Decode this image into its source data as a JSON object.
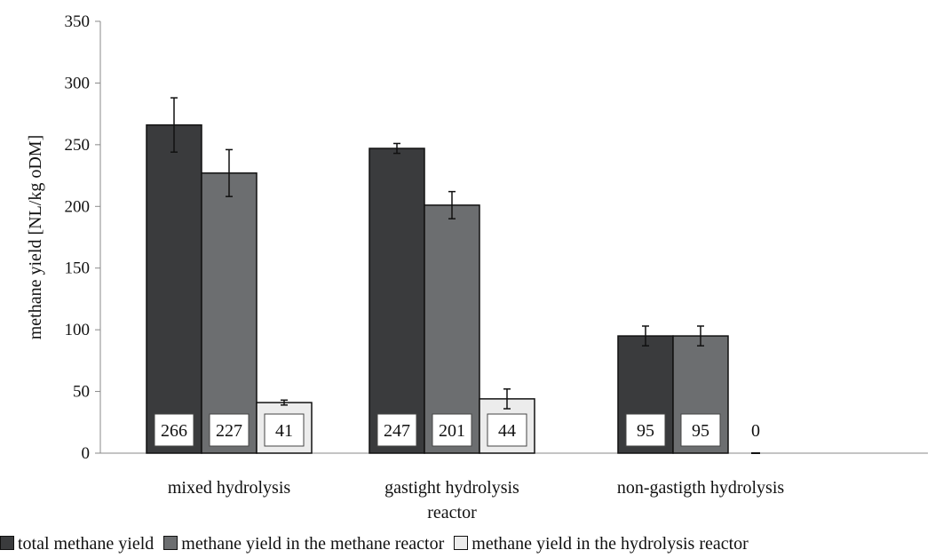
{
  "chart_data": {
    "type": "bar",
    "ylabel": "methane yield [NL/kg oDM]",
    "xlabel": "",
    "ylim": [
      0,
      350
    ],
    "yticks": [
      0,
      50,
      100,
      150,
      200,
      250,
      300,
      350
    ],
    "grid": false,
    "legend_position": "bottom",
    "categories": [
      [
        "mixed hydrolysis"
      ],
      [
        "gastight hydrolysis",
        "reactor"
      ],
      [
        "non-gastigth hydrolysis"
      ]
    ],
    "series": [
      {
        "name": "total methane yield",
        "color": "#3a3b3d",
        "values": [
          266,
          247,
          95
        ],
        "errors": [
          22,
          4,
          8
        ],
        "labels": [
          "266",
          "247",
          "95"
        ]
      },
      {
        "name": "methane yield in the methane reactor",
        "color": "#6c6e70",
        "values": [
          227,
          201,
          95
        ],
        "errors": [
          19,
          11,
          8
        ],
        "labels": [
          "227",
          "201",
          "95"
        ]
      },
      {
        "name": "methane yield in the hydrolysis reactor",
        "color": "#ececec",
        "values": [
          41,
          44,
          0
        ],
        "errors": [
          2,
          8,
          0
        ],
        "labels": [
          "41",
          "44",
          "0"
        ]
      }
    ]
  }
}
